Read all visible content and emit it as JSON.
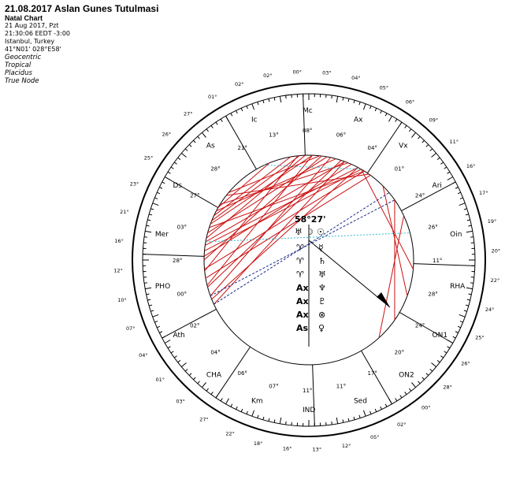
{
  "header": {
    "title": "21.08.2017 Aslan Gunes Tutulmasi",
    "subtitle": "Natal Chart",
    "lines": [
      "21 Aug 2017, Pzt",
      "21:30:06  EEDT  -3:00",
      "Istanbul, Turkey",
      "41°N01' 028°E58'"
    ],
    "settings": [
      "Geocentric",
      "Tropical",
      "Placidus",
      "True Node"
    ]
  },
  "colors": {
    "aspect_red": "#cc1111",
    "aspect_blue": "#1a2a8a",
    "aspect_cyan": "#33bbcc",
    "ink": "#000000"
  },
  "axis_labels": [
    {
      "id": "ds",
      "text": "Ds"
    },
    {
      "id": "as",
      "text": "As"
    },
    {
      "id": "ic",
      "text": "Ic"
    },
    {
      "id": "mc",
      "text": "Mc"
    },
    {
      "id": "ax",
      "text": "Ax"
    },
    {
      "id": "vx",
      "text": "Vx"
    },
    {
      "id": "ari",
      "text": "Ari"
    },
    {
      "id": "oin",
      "text": "Oin"
    },
    {
      "id": "rha",
      "text": "RHA"
    },
    {
      "id": "on1",
      "text": "ON1"
    },
    {
      "id": "on2",
      "text": "ON2"
    },
    {
      "id": "sed",
      "text": "Sed"
    },
    {
      "id": "ind",
      "text": "IND"
    },
    {
      "id": "km",
      "text": "Km"
    },
    {
      "id": "cha",
      "text": "CHA"
    },
    {
      "id": "ath",
      "text": "Ath"
    },
    {
      "id": "pho",
      "text": "PHO"
    },
    {
      "id": "mer",
      "text": "Mer"
    }
  ],
  "inner_degrees": [
    {
      "id": "i1",
      "text": "21°"
    },
    {
      "id": "i2",
      "text": "13°"
    },
    {
      "id": "i3",
      "text": "08°"
    },
    {
      "id": "i4",
      "text": "06°"
    },
    {
      "id": "i5",
      "text": "04°"
    },
    {
      "id": "i6",
      "text": "01°"
    },
    {
      "id": "i7",
      "text": "24°"
    },
    {
      "id": "i8",
      "text": "26°"
    },
    {
      "id": "i9",
      "text": "11°"
    },
    {
      "id": "i10",
      "text": "28°"
    },
    {
      "id": "i11",
      "text": "24°"
    },
    {
      "id": "i12",
      "text": "20°"
    },
    {
      "id": "i13",
      "text": "17°"
    },
    {
      "id": "i14",
      "text": "11°"
    },
    {
      "id": "i15",
      "text": "11°"
    },
    {
      "id": "i16",
      "text": "07°"
    },
    {
      "id": "i17",
      "text": "06°"
    },
    {
      "id": "i18",
      "text": "04°"
    },
    {
      "id": "i19",
      "text": "02°"
    },
    {
      "id": "i20",
      "text": "00°"
    },
    {
      "id": "i21",
      "text": "28°"
    },
    {
      "id": "i22",
      "text": "03°"
    },
    {
      "id": "i23",
      "text": "27°"
    },
    {
      "id": "i24",
      "text": "28°"
    }
  ],
  "outer_degrees": [
    {
      "id": "o1",
      "text": "01°"
    },
    {
      "id": "o2",
      "text": "02°"
    },
    {
      "id": "o3",
      "text": "02°"
    },
    {
      "id": "o4",
      "text": "00°"
    },
    {
      "id": "o5",
      "text": "03°"
    },
    {
      "id": "o6",
      "text": "04°"
    },
    {
      "id": "o7",
      "text": "05°"
    },
    {
      "id": "o8",
      "text": "06°"
    },
    {
      "id": "o9",
      "text": "09°"
    },
    {
      "id": "o10",
      "text": "11°"
    },
    {
      "id": "o11",
      "text": "16°"
    },
    {
      "id": "o12",
      "text": "17°"
    },
    {
      "id": "o13",
      "text": "19°"
    },
    {
      "id": "o14",
      "text": "20°"
    },
    {
      "id": "o15",
      "text": "22°"
    },
    {
      "id": "o16",
      "text": "24°"
    },
    {
      "id": "o17",
      "text": "25°"
    },
    {
      "id": "o18",
      "text": "26°"
    },
    {
      "id": "o19",
      "text": "28°"
    },
    {
      "id": "o20",
      "text": "00°"
    },
    {
      "id": "o21",
      "text": "02°"
    },
    {
      "id": "o22",
      "text": "05°"
    },
    {
      "id": "o23",
      "text": "12°"
    },
    {
      "id": "o24",
      "text": "13°"
    },
    {
      "id": "o25",
      "text": "16°"
    },
    {
      "id": "o26",
      "text": "18°"
    },
    {
      "id": "o27",
      "text": "22°"
    },
    {
      "id": "o28",
      "text": "27°"
    },
    {
      "id": "o29",
      "text": "03°"
    },
    {
      "id": "o30",
      "text": "01°"
    },
    {
      "id": "o31",
      "text": "04°"
    },
    {
      "id": "o32",
      "text": "07°"
    },
    {
      "id": "o33",
      "text": "10°"
    },
    {
      "id": "o34",
      "text": "12°"
    },
    {
      "id": "o35",
      "text": "16°"
    },
    {
      "id": "o36",
      "text": "21°"
    },
    {
      "id": "o37",
      "text": "23°"
    },
    {
      "id": "o38",
      "text": "25°"
    },
    {
      "id": "o39",
      "text": "26°"
    },
    {
      "id": "o40",
      "text": "27°"
    }
  ],
  "center": {
    "angle_label": "58°27'",
    "rows": [
      {
        "left": "♈",
        "right": "☿"
      },
      {
        "left": "♈",
        "right": "♄"
      },
      {
        "left": "♈",
        "right": "♅"
      },
      {
        "left": "Ax",
        "right": "♆"
      },
      {
        "left": "Ax",
        "right": "♇"
      },
      {
        "left": "Ax",
        "right": "⊗"
      },
      {
        "left": "As",
        "right": "♀"
      }
    ],
    "top_symbols": [
      "♅",
      "☽",
      "☉"
    ]
  }
}
